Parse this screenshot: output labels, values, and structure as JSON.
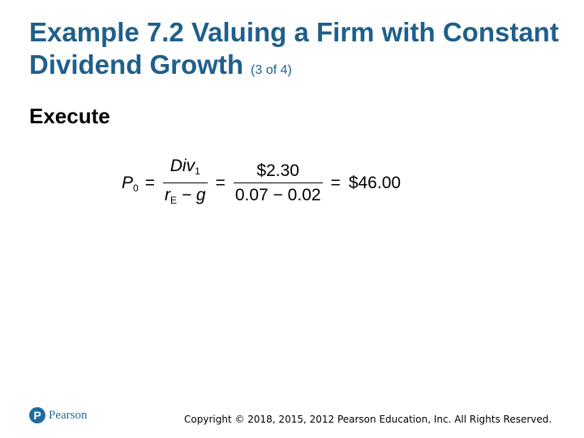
{
  "slide": {
    "title_main": "Example 7.2 Valuing a Firm with Constant Dividend Growth",
    "title_suffix": "(3 of 4)",
    "section_heading": "Execute"
  },
  "formula": {
    "lhs_var": "P",
    "lhs_sub": "0",
    "equals": "=",
    "frac1_num_var": "Div",
    "frac1_num_sub": "1",
    "frac1_den_var": "r",
    "frac1_den_sub": "E",
    "frac1_den_rest": "− g",
    "frac2_num": "$2.30",
    "frac2_den": "0.07 − 0.02",
    "result": "$46.00"
  },
  "footer": {
    "logo_letter": "P",
    "logo_text": "Pearson",
    "copyright": "Copyright © 2018, 2015, 2012 Pearson Education, Inc. All Rights Reserved."
  },
  "colors": {
    "title": "#1f5f8b",
    "logo": "#1f6b9e"
  },
  "icons": {
    "logo": "pearson-logo-icon"
  }
}
